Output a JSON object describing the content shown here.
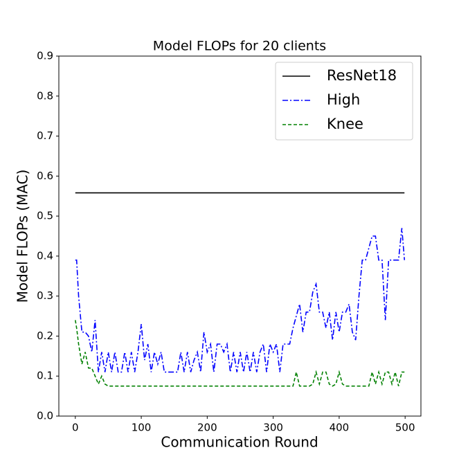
{
  "chart_data": {
    "type": "line",
    "title": "Model FLOPs for 20 clients",
    "x_label": "Communication Round",
    "y_label": "Model FLOPs (MAC)",
    "x": [
      0,
      2,
      5,
      10,
      15,
      20,
      25,
      30,
      35,
      40,
      45,
      50,
      55,
      60,
      65,
      70,
      75,
      80,
      85,
      90,
      95,
      100,
      105,
      110,
      115,
      120,
      125,
      130,
      135,
      140,
      145,
      150,
      155,
      160,
      165,
      170,
      175,
      180,
      185,
      190,
      195,
      200,
      205,
      210,
      215,
      220,
      225,
      230,
      235,
      240,
      245,
      250,
      255,
      260,
      265,
      270,
      275,
      280,
      285,
      290,
      295,
      300,
      305,
      310,
      315,
      320,
      325,
      330,
      335,
      340,
      345,
      350,
      355,
      360,
      365,
      370,
      375,
      380,
      385,
      390,
      395,
      400,
      405,
      410,
      415,
      420,
      425,
      430,
      435,
      440,
      445,
      450,
      455,
      460,
      465,
      470,
      475,
      480,
      485,
      490,
      495,
      499
    ],
    "series": [
      {
        "name": "ResNet18",
        "color": "#000000",
        "dash": "",
        "values": [
          0.558,
          0.558,
          0.558,
          0.558,
          0.558,
          0.558,
          0.558,
          0.558,
          0.558,
          0.558,
          0.558,
          0.558,
          0.558,
          0.558,
          0.558,
          0.558,
          0.558,
          0.558,
          0.558,
          0.558,
          0.558,
          0.558,
          0.558,
          0.558,
          0.558,
          0.558,
          0.558,
          0.558,
          0.558,
          0.558,
          0.558,
          0.558,
          0.558,
          0.558,
          0.558,
          0.558,
          0.558,
          0.558,
          0.558,
          0.558,
          0.558,
          0.558,
          0.558,
          0.558,
          0.558,
          0.558,
          0.558,
          0.558,
          0.558,
          0.558,
          0.558,
          0.558,
          0.558,
          0.558,
          0.558,
          0.558,
          0.558,
          0.558,
          0.558,
          0.558,
          0.558,
          0.558,
          0.558,
          0.558,
          0.558,
          0.558,
          0.558,
          0.558,
          0.558,
          0.558,
          0.558,
          0.558,
          0.558,
          0.558,
          0.558,
          0.558,
          0.558,
          0.558,
          0.558,
          0.558,
          0.558,
          0.558,
          0.558,
          0.558,
          0.558,
          0.558,
          0.558,
          0.558,
          0.558,
          0.558,
          0.558,
          0.558,
          0.558,
          0.558,
          0.558,
          0.558,
          0.558,
          0.558,
          0.558,
          0.558,
          0.558,
          0.558
        ]
      },
      {
        "name": "High",
        "color": "#0000ff",
        "dash": "8,3,2,3",
        "values": [
          0.39,
          0.39,
          0.3,
          0.21,
          0.21,
          0.2,
          0.16,
          0.24,
          0.11,
          0.16,
          0.11,
          0.16,
          0.11,
          0.16,
          0.11,
          0.11,
          0.16,
          0.11,
          0.16,
          0.11,
          0.16,
          0.23,
          0.14,
          0.18,
          0.11,
          0.16,
          0.13,
          0.16,
          0.11,
          0.11,
          0.11,
          0.11,
          0.11,
          0.16,
          0.11,
          0.16,
          0.11,
          0.14,
          0.16,
          0.11,
          0.21,
          0.16,
          0.18,
          0.11,
          0.18,
          0.18,
          0.16,
          0.18,
          0.11,
          0.16,
          0.11,
          0.16,
          0.11,
          0.16,
          0.11,
          0.16,
          0.11,
          0.16,
          0.18,
          0.11,
          0.18,
          0.16,
          0.18,
          0.11,
          0.18,
          0.18,
          0.18,
          0.22,
          0.25,
          0.28,
          0.21,
          0.26,
          0.26,
          0.31,
          0.33,
          0.26,
          0.26,
          0.22,
          0.26,
          0.19,
          0.26,
          0.21,
          0.26,
          0.26,
          0.28,
          0.21,
          0.19,
          0.3,
          0.39,
          0.39,
          0.42,
          0.45,
          0.45,
          0.39,
          0.39,
          0.24,
          0.39,
          0.39,
          0.39,
          0.39,
          0.47,
          0.39
        ]
      },
      {
        "name": "Knee",
        "color": "#008000",
        "dash": "5,3",
        "values": [
          0.24,
          0.22,
          0.18,
          0.13,
          0.16,
          0.12,
          0.12,
          0.1,
          0.08,
          0.1,
          0.08,
          0.075,
          0.075,
          0.075,
          0.075,
          0.075,
          0.075,
          0.075,
          0.075,
          0.075,
          0.075,
          0.075,
          0.075,
          0.075,
          0.075,
          0.075,
          0.075,
          0.075,
          0.075,
          0.075,
          0.075,
          0.075,
          0.075,
          0.075,
          0.075,
          0.075,
          0.075,
          0.075,
          0.075,
          0.075,
          0.075,
          0.075,
          0.075,
          0.075,
          0.075,
          0.075,
          0.075,
          0.075,
          0.075,
          0.075,
          0.075,
          0.075,
          0.075,
          0.075,
          0.075,
          0.075,
          0.075,
          0.075,
          0.075,
          0.075,
          0.075,
          0.075,
          0.075,
          0.075,
          0.075,
          0.075,
          0.075,
          0.075,
          0.11,
          0.075,
          0.075,
          0.075,
          0.075,
          0.08,
          0.11,
          0.08,
          0.11,
          0.11,
          0.08,
          0.075,
          0.08,
          0.11,
          0.08,
          0.075,
          0.075,
          0.075,
          0.075,
          0.075,
          0.075,
          0.075,
          0.075,
          0.11,
          0.08,
          0.11,
          0.08,
          0.11,
          0.11,
          0.08,
          0.11,
          0.075,
          0.11,
          0.11
        ]
      }
    ],
    "xlim": [
      -24.95,
      523.95
    ],
    "ylim": [
      0,
      0.9
    ],
    "xticks": [
      0,
      100,
      200,
      300,
      400,
      500
    ],
    "yticks": [
      {
        "value": 0,
        "label": "0.0"
      },
      0.1,
      0.2,
      0.3,
      0.4,
      0.5,
      0.6,
      0.7,
      0.8,
      0.9
    ],
    "legend": "upper right"
  }
}
